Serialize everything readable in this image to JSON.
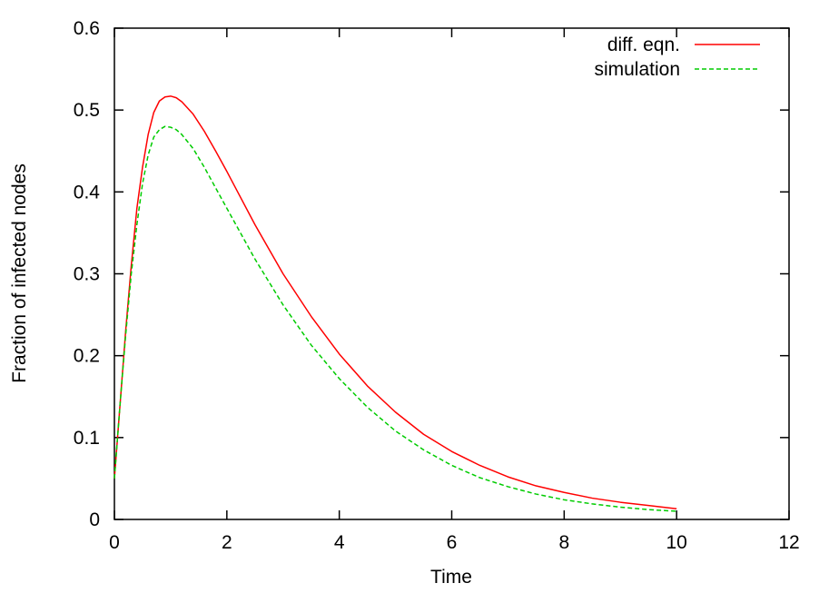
{
  "chart_data": {
    "type": "line",
    "title": "",
    "xlabel": "Time",
    "ylabel": "Fraction of infected nodes",
    "xlim": [
      0,
      12
    ],
    "ylim": [
      0,
      0.6
    ],
    "x_ticks": [
      "0",
      "2",
      "4",
      "6",
      "8",
      "10",
      "12"
    ],
    "y_ticks": [
      "0",
      "0.1",
      "0.2",
      "0.3",
      "0.4",
      "0.5",
      "0.6"
    ],
    "grid": false,
    "legend_position": "top-right",
    "series": [
      {
        "name": "diff. eqn.",
        "color": "#ff0000",
        "style": "solid",
        "x": [
          0,
          0.1,
          0.2,
          0.3,
          0.4,
          0.5,
          0.6,
          0.7,
          0.8,
          0.9,
          1.0,
          1.1,
          1.2,
          1.4,
          1.6,
          1.8,
          2.0,
          2.5,
          3.0,
          3.5,
          4.0,
          4.5,
          5.0,
          5.5,
          6.0,
          6.5,
          7.0,
          7.5,
          8.0,
          8.5,
          9.0,
          9.5,
          10.0
        ],
        "y": [
          0.05,
          0.14,
          0.23,
          0.31,
          0.38,
          0.43,
          0.47,
          0.497,
          0.511,
          0.516,
          0.517,
          0.515,
          0.51,
          0.495,
          0.474,
          0.45,
          0.425,
          0.36,
          0.3,
          0.248,
          0.202,
          0.163,
          0.131,
          0.104,
          0.083,
          0.066,
          0.052,
          0.041,
          0.033,
          0.026,
          0.021,
          0.017,
          0.013
        ]
      },
      {
        "name": "simulation",
        "color": "#00cc00",
        "style": "dashed",
        "x": [
          0,
          0.1,
          0.2,
          0.3,
          0.4,
          0.5,
          0.6,
          0.7,
          0.8,
          0.9,
          1.0,
          1.1,
          1.2,
          1.4,
          1.6,
          1.8,
          2.0,
          2.5,
          3.0,
          3.5,
          4.0,
          4.5,
          5.0,
          5.5,
          6.0,
          6.5,
          7.0,
          7.5,
          8.0,
          8.5,
          9.0,
          9.5,
          10.0
        ],
        "y": [
          0.05,
          0.14,
          0.225,
          0.3,
          0.36,
          0.41,
          0.445,
          0.467,
          0.476,
          0.48,
          0.479,
          0.476,
          0.47,
          0.453,
          0.43,
          0.405,
          0.38,
          0.318,
          0.262,
          0.213,
          0.172,
          0.137,
          0.108,
          0.085,
          0.066,
          0.051,
          0.04,
          0.031,
          0.024,
          0.019,
          0.015,
          0.012,
          0.01
        ]
      }
    ]
  }
}
